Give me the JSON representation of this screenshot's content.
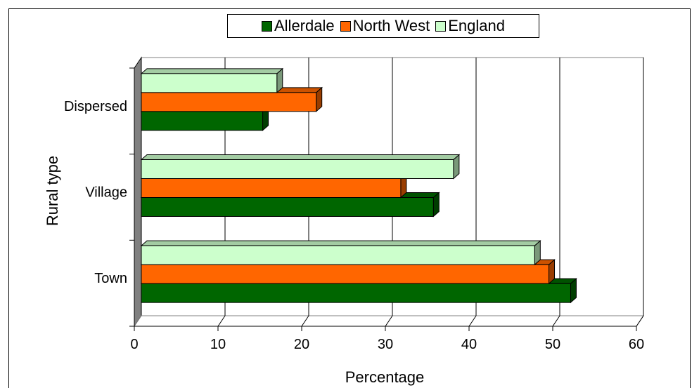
{
  "chart_data": {
    "type": "bar",
    "orientation": "horizontal",
    "title": "",
    "xlabel": "Percentage",
    "ylabel": "Rural type",
    "categories": [
      "Town",
      "Village",
      "Dispersed"
    ],
    "series": [
      {
        "name": "Allerdale",
        "values": [
          51.3,
          34.9,
          14.5
        ],
        "color": "#006600"
      },
      {
        "name": "North West",
        "values": [
          48.7,
          31.0,
          20.9
        ],
        "color": "#ff6600"
      },
      {
        "name": "England",
        "values": [
          47.0,
          37.3,
          16.2
        ],
        "color": "#ccffcc"
      }
    ],
    "xlim": [
      0,
      60
    ],
    "x_ticks": [
      "0",
      "10",
      "20",
      "30",
      "40",
      "50",
      "60"
    ],
    "grid": "vertical",
    "legend_position": "top"
  }
}
